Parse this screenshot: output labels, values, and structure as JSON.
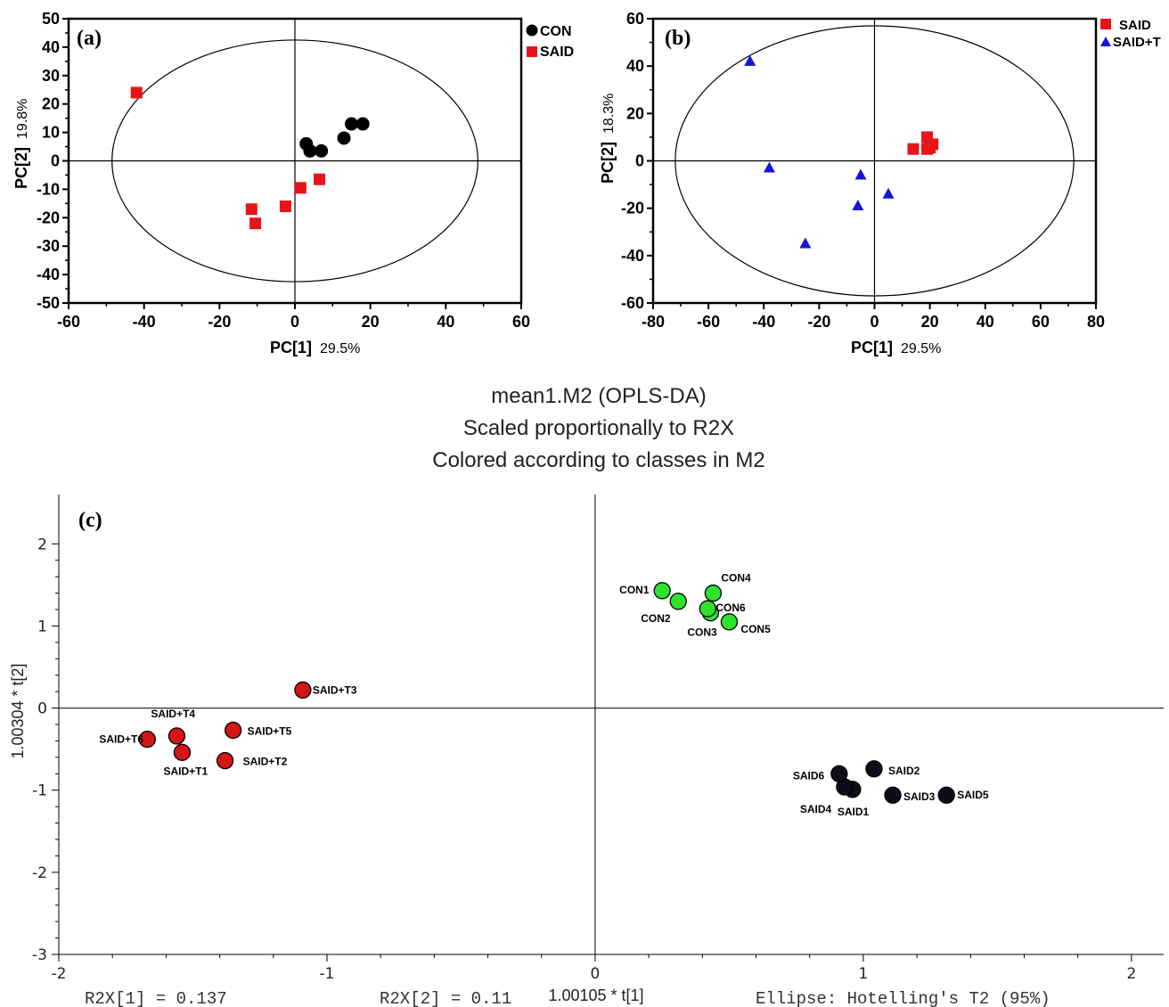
{
  "chart_data": [
    {
      "type": "scatter",
      "panel_label": "(a)",
      "xlabel": "PC[1]",
      "xlabel_pct": "29.5%",
      "ylabel": "PC[2]",
      "ylabel_pct": "19.8%",
      "xlim": [
        -60,
        60
      ],
      "ylim": [
        -50,
        50
      ],
      "xticks": [
        -60,
        -40,
        -20,
        0,
        20,
        40,
        60
      ],
      "yticks": [
        -50,
        -40,
        -30,
        -20,
        -10,
        0,
        10,
        20,
        30,
        40,
        50
      ],
      "ellipse": {
        "rx": 48.5,
        "ry": 42.5
      },
      "legend_position": "top-right",
      "series": [
        {
          "name": "CON",
          "marker": "circle",
          "color": "#000000",
          "points": [
            [
              3,
              6
            ],
            [
              4,
              3.5
            ],
            [
              7,
              3.5
            ],
            [
              13,
              8
            ],
            [
              15,
              13
            ],
            [
              18,
              13
            ]
          ]
        },
        {
          "name": "SAID",
          "marker": "square",
          "color": "#e8141c",
          "points": [
            [
              -42,
              24
            ],
            [
              -11.5,
              -17
            ],
            [
              -10.5,
              -22
            ],
            [
              -2.5,
              -16
            ],
            [
              1.5,
              -9.5
            ],
            [
              6.5,
              -6.5
            ]
          ]
        }
      ]
    },
    {
      "type": "scatter",
      "panel_label": "(b)",
      "xlabel": "PC[1]",
      "xlabel_pct": "29.5%",
      "ylabel": "PC[2]",
      "ylabel_pct": "18.3%",
      "xlim": [
        -80,
        80
      ],
      "ylim": [
        -60,
        60
      ],
      "xticks": [
        -80,
        -60,
        -40,
        -20,
        0,
        20,
        40,
        60,
        80
      ],
      "yticks": [
        -60,
        -40,
        -20,
        0,
        20,
        40,
        60
      ],
      "ellipse": {
        "rx": 72,
        "ry": 57
      },
      "legend_position": "top-right",
      "series": [
        {
          "name": "SAID",
          "marker": "square",
          "color": "#e8141c",
          "points": [
            [
              14,
              5
            ],
            [
              19,
              10
            ],
            [
              19,
              5
            ],
            [
              20,
              5.5
            ],
            [
              21,
              7
            ]
          ]
        },
        {
          "name": "SAID+T",
          "marker": "triangle",
          "color": "#1515d6",
          "points": [
            [
              -45,
              42
            ],
            [
              -38,
              -3
            ],
            [
              -25,
              -35
            ],
            [
              -6,
              -19
            ],
            [
              -5,
              -6
            ],
            [
              5,
              -14
            ]
          ]
        }
      ]
    },
    {
      "type": "scatter",
      "panel_label": "(c)",
      "title_lines": [
        "mean1.M2 (OPLS-DA)",
        "Scaled proportionally to R2X",
        "Colored according to classes in M2"
      ],
      "xlabel": "1.00105 * t[1]",
      "ylabel": "1.00304 * t[2]",
      "xlim": [
        -2,
        2.12
      ],
      "ylim": [
        -3,
        2.6
      ],
      "xticks": [
        -2,
        -1,
        0,
        1,
        2
      ],
      "yticks": [
        -3,
        -2,
        -1,
        0,
        1,
        2
      ],
      "footer": {
        "r2x1": "R2X[1] = 0.137",
        "r2x2": "R2X[2] = 0.11",
        "ellipse_note": "Ellipse: Hotelling's T2 (95%)"
      },
      "series": [
        {
          "group": "CON",
          "color": "#2ee22e",
          "points": [
            {
              "label": "CON1",
              "x": 0.25,
              "y": 1.43
            },
            {
              "label": "CON2",
              "x": 0.31,
              "y": 1.3
            },
            {
              "label": "CON3",
              "x": 0.43,
              "y": 1.16
            },
            {
              "label": "CON4",
              "x": 0.44,
              "y": 1.4
            },
            {
              "label": "CON5",
              "x": 0.5,
              "y": 1.05
            },
            {
              "label": "CON6",
              "x": 0.42,
              "y": 1.21
            }
          ]
        },
        {
          "group": "SAID",
          "color": "#0d0d1a",
          "points": [
            {
              "label": "SAID1",
              "x": 0.96,
              "y": -0.99
            },
            {
              "label": "SAID2",
              "x": 1.04,
              "y": -0.74
            },
            {
              "label": "SAID3",
              "x": 1.11,
              "y": -1.06
            },
            {
              "label": "SAID4",
              "x": 0.93,
              "y": -0.96
            },
            {
              "label": "SAID5",
              "x": 1.31,
              "y": -1.06
            },
            {
              "label": "SAID6",
              "x": 0.91,
              "y": -0.8
            }
          ]
        },
        {
          "group": "SAID+T",
          "color": "#d21616",
          "points": [
            {
              "label": "SAID+T1",
              "x": -1.54,
              "y": -0.54
            },
            {
              "label": "SAID+T2",
              "x": -1.38,
              "y": -0.64
            },
            {
              "label": "SAID+T3",
              "x": -1.09,
              "y": 0.22
            },
            {
              "label": "SAID+T4",
              "x": -1.56,
              "y": -0.34
            },
            {
              "label": "SAID+T5",
              "x": -1.35,
              "y": -0.27
            },
            {
              "label": "SAID+T6",
              "x": -1.67,
              "y": -0.38
            }
          ]
        }
      ]
    }
  ]
}
